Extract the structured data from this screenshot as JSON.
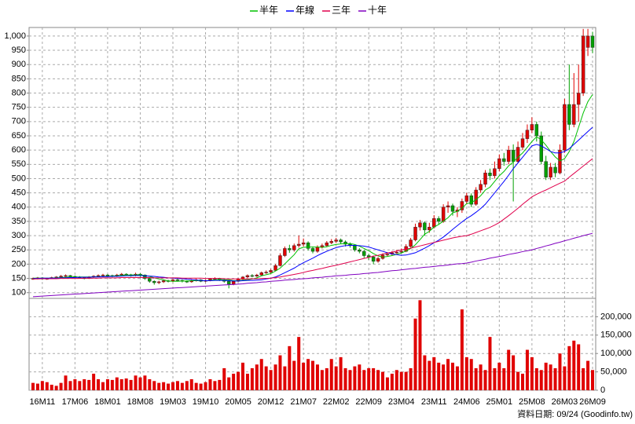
{
  "chart_data": [
    {
      "type": "candlestick",
      "categories": [
        null,
        null,
        "16M11",
        null,
        null,
        null,
        null,
        null,
        null,
        "17M06",
        null,
        null,
        null,
        null,
        null,
        null,
        "18M01",
        null,
        null,
        null,
        null,
        null,
        null,
        "18M08",
        null,
        null,
        null,
        null,
        null,
        null,
        "19M03",
        null,
        null,
        null,
        null,
        null,
        null,
        "19M10",
        null,
        null,
        null,
        null,
        null,
        null,
        "20M05",
        null,
        null,
        null,
        null,
        null,
        null,
        "20M12",
        null,
        null,
        null,
        null,
        null,
        null,
        "21M07",
        null,
        null,
        null,
        null,
        null,
        null,
        "22M02",
        null,
        null,
        null,
        null,
        null,
        null,
        "22M09",
        null,
        null,
        null,
        null,
        null,
        null,
        "23M04",
        null,
        null,
        null,
        null,
        null,
        null,
        "23M11",
        null,
        null,
        null,
        null,
        null,
        null,
        "24M06",
        null,
        null,
        null,
        null,
        null,
        null,
        "25M01",
        null,
        null,
        null,
        null,
        null,
        null,
        "25M08",
        null,
        null,
        null,
        null,
        null,
        null,
        "26M03",
        null,
        null,
        null,
        null,
        null,
        "26M09"
      ],
      "open": [
        148,
        150,
        152,
        148,
        150,
        153,
        155,
        158,
        160,
        157,
        155,
        152,
        150,
        155,
        158,
        160,
        162,
        160,
        158,
        162,
        165,
        163,
        160,
        165,
        162,
        150,
        140,
        135,
        138,
        142,
        140,
        145,
        143,
        140,
        138,
        142,
        145,
        140,
        143,
        148,
        150,
        145,
        140,
        130,
        140,
        148,
        155,
        160,
        158,
        162,
        170,
        172,
        178,
        195,
        230,
        255,
        250,
        265,
        270,
        275,
        255,
        245,
        260,
        265,
        275,
        280,
        285,
        278,
        270,
        265,
        250,
        245,
        230,
        225,
        210,
        220,
        232,
        235,
        240,
        242,
        245,
        262,
        285,
        330,
        345,
        320,
        330,
        360,
        350,
        400,
        405,
        385,
        390,
        420,
        440,
        410,
        460,
        480,
        520,
        510,
        535,
        570,
        560,
        600,
        560,
        610,
        640,
        670,
        690,
        650,
        560,
        505,
        540,
        520,
        600,
        760,
        690,
        760,
        800,
        960,
        1000
      ],
      "high": [
        153,
        155,
        154,
        152,
        156,
        158,
        162,
        164,
        162,
        160,
        158,
        155,
        158,
        161,
        164,
        166,
        165,
        163,
        166,
        169,
        168,
        166,
        170,
        168,
        164,
        152,
        143,
        142,
        146,
        145,
        148,
        149,
        146,
        143,
        145,
        149,
        147,
        146,
        151,
        154,
        152,
        148,
        143,
        143,
        151,
        158,
        164,
        165,
        166,
        174,
        178,
        183,
        200,
        238,
        262,
        268,
        272,
        300,
        290,
        280,
        262,
        266,
        272,
        281,
        288,
        292,
        290,
        283,
        276,
        270,
        256,
        250,
        236,
        230,
        225,
        238,
        242,
        246,
        250,
        255,
        270,
        292,
        342,
        355,
        350,
        345,
        372,
        368,
        410,
        420,
        412,
        400,
        430,
        450,
        448,
        470,
        495,
        530,
        535,
        560,
        585,
        590,
        615,
        620,
        630,
        660,
        690,
        715,
        700,
        665,
        580,
        555,
        555,
        620,
        780,
        900,
        870,
        900,
        1025,
        1025,
        1015
      ],
      "low": [
        145,
        147,
        145,
        145,
        148,
        150,
        153,
        155,
        154,
        152,
        149,
        147,
        148,
        152,
        155,
        157,
        156,
        154,
        155,
        159,
        159,
        156,
        157,
        155,
        145,
        135,
        128,
        130,
        134,
        136,
        137,
        139,
        136,
        134,
        135,
        139,
        137,
        137,
        140,
        145,
        141,
        135,
        115,
        126,
        137,
        145,
        151,
        154,
        155,
        160,
        166,
        168,
        175,
        192,
        225,
        240,
        244,
        258,
        262,
        248,
        238,
        240,
        255,
        260,
        270,
        274,
        270,
        262,
        258,
        244,
        238,
        222,
        215,
        200,
        205,
        216,
        228,
        230,
        236,
        238,
        242,
        258,
        280,
        318,
        300,
        310,
        325,
        340,
        345,
        380,
        370,
        365,
        380,
        410,
        400,
        405,
        450,
        470,
        495,
        500,
        525,
        545,
        550,
        420,
        555,
        600,
        625,
        660,
        630,
        550,
        495,
        495,
        505,
        515,
        590,
        670,
        680,
        700,
        790,
        930,
        940
      ],
      "close": [
        150,
        152,
        148,
        150,
        153,
        155,
        158,
        160,
        157,
        155,
        152,
        150,
        155,
        158,
        160,
        162,
        160,
        158,
        162,
        165,
        163,
        160,
        165,
        162,
        150,
        140,
        135,
        138,
        142,
        140,
        145,
        143,
        140,
        138,
        142,
        145,
        140,
        143,
        148,
        150,
        145,
        140,
        130,
        140,
        148,
        155,
        160,
        158,
        162,
        170,
        172,
        178,
        195,
        230,
        255,
        250,
        265,
        270,
        275,
        255,
        245,
        260,
        265,
        275,
        280,
        285,
        278,
        270,
        265,
        250,
        245,
        230,
        225,
        210,
        220,
        232,
        235,
        240,
        242,
        245,
        262,
        285,
        330,
        345,
        320,
        330,
        360,
        350,
        400,
        405,
        385,
        390,
        420,
        440,
        410,
        460,
        480,
        520,
        510,
        535,
        570,
        560,
        600,
        560,
        610,
        640,
        670,
        690,
        650,
        560,
        505,
        540,
        520,
        600,
        760,
        690,
        760,
        800,
        1000,
        1000,
        960
      ],
      "up_color": "#e00000",
      "down_color": "#00a000",
      "series": [
        {
          "name": "半年",
          "color": "#00c000",
          "values": [
            151,
            151,
            151,
            151,
            151,
            152,
            153,
            154,
            155,
            155,
            155,
            155,
            155,
            155,
            156,
            156,
            157,
            158,
            159,
            161,
            162,
            162,
            162,
            163,
            160,
            157,
            152,
            148,
            145,
            141,
            140,
            140,
            141,
            141,
            142,
            142,
            142,
            142,
            143,
            145,
            146,
            145,
            145,
            142,
            142,
            144,
            145,
            148,
            152,
            159,
            163,
            167,
            176,
            186,
            201,
            217,
            233,
            254,
            259,
            260,
            260,
            260,
            259,
            261,
            266,
            269,
            271,
            272,
            272,
            269,
            263,
            255,
            247,
            237,
            229,
            225,
            227,
            230,
            234,
            239,
            246,
            255,
            268,
            286,
            305,
            315,
            330,
            339,
            351,
            363,
            380,
            385,
            397,
            412,
            416,
            426,
            440,
            460,
            470,
            490,
            510,
            525,
            545,
            558,
            575,
            590,
            610,
            630,
            647,
            636,
            617,
            595,
            576,
            562,
            570,
            595,
            630,
            680,
            730,
            770,
            795
          ]
        },
        {
          "name": "年線",
          "color": "#0000ff",
          "values": [
            150,
            150,
            151,
            151,
            151,
            151,
            152,
            152,
            153,
            153,
            154,
            154,
            154,
            155,
            155,
            156,
            156,
            157,
            157,
            158,
            159,
            159,
            160,
            160,
            159,
            158,
            157,
            155,
            154,
            152,
            151,
            150,
            149,
            147,
            146,
            144,
            143,
            142,
            142,
            143,
            143,
            143,
            142,
            141,
            141,
            142,
            143,
            143,
            144,
            145,
            148,
            151,
            155,
            162,
            170,
            178,
            186,
            196,
            205,
            213,
            221,
            230,
            238,
            245,
            252,
            258,
            262,
            265,
            266,
            266,
            265,
            263,
            260,
            255,
            250,
            245,
            240,
            236,
            233,
            231,
            232,
            236,
            240,
            248,
            256,
            265,
            275,
            284,
            295,
            308,
            322,
            335,
            348,
            360,
            370,
            382,
            395,
            410,
            430,
            450,
            470,
            490,
            512,
            535,
            555,
            575,
            595,
            615,
            620,
            615,
            605,
            595,
            590,
            590,
            595,
            605,
            620,
            635,
            650,
            665,
            680
          ]
        },
        {
          "name": "三年",
          "color": "#e0004c",
          "values": [
            148,
            148,
            149,
            149,
            149,
            149,
            150,
            150,
            150,
            150,
            150,
            151,
            151,
            151,
            151,
            152,
            152,
            152,
            152,
            153,
            153,
            153,
            153,
            153,
            153,
            153,
            152,
            152,
            152,
            152,
            152,
            152,
            151,
            151,
            151,
            151,
            151,
            150,
            150,
            150,
            150,
            149,
            148,
            148,
            148,
            148,
            148,
            149,
            149,
            150,
            150,
            151,
            153,
            155,
            158,
            161,
            164,
            167,
            171,
            175,
            178,
            182,
            185,
            189,
            193,
            196,
            200,
            204,
            208,
            212,
            216,
            220,
            224,
            228,
            231,
            235,
            239,
            242,
            246,
            250,
            253,
            256,
            260,
            264,
            268,
            272,
            276,
            280,
            284,
            288,
            292,
            295,
            298,
            300,
            305,
            311,
            317,
            323,
            329,
            337,
            346,
            358,
            370,
            383,
            396,
            410,
            423,
            436,
            445,
            453,
            460,
            468,
            476,
            484,
            491,
            505,
            518,
            531,
            544,
            557,
            570
          ]
        },
        {
          "name": "十年",
          "color": "#8000c0",
          "values": [
            86,
            87,
            88,
            89,
            90,
            91,
            92,
            93,
            94,
            95,
            96,
            97,
            98,
            99,
            100,
            101,
            102,
            103,
            104,
            105,
            106,
            107,
            108,
            109,
            110,
            111,
            112,
            113,
            114,
            115,
            116,
            117,
            118,
            119,
            120,
            121,
            122,
            123,
            124,
            125,
            126,
            127,
            128,
            129,
            130,
            131,
            133,
            134,
            135,
            137,
            138,
            140,
            141,
            142,
            144,
            145,
            146,
            148,
            149,
            150,
            152,
            153,
            154,
            156,
            157,
            159,
            160,
            161,
            163,
            164,
            165,
            167,
            168,
            170,
            171,
            173,
            175,
            177,
            178,
            180,
            182,
            184,
            185,
            187,
            189,
            190,
            192,
            194,
            195,
            197,
            199,
            201,
            202,
            204,
            207,
            211,
            214,
            217,
            221,
            224,
            227,
            230,
            234,
            237,
            240,
            244,
            247,
            250,
            255,
            259,
            264,
            268,
            273,
            277,
            282,
            286,
            291,
            295,
            300,
            304,
            308
          ]
        }
      ],
      "ylim": [
        80,
        1030
      ],
      "yticks": [
        100,
        150,
        200,
        250,
        300,
        350,
        400,
        450,
        500,
        550,
        600,
        650,
        700,
        750,
        800,
        850,
        900,
        950,
        {
          "value": 1000,
          "label": "1,000"
        }
      ],
      "grid": true,
      "legend": "top"
    },
    {
      "type": "bar",
      "values": [
        20000,
        18000,
        25000,
        22000,
        15000,
        12000,
        20000,
        40000,
        25000,
        30000,
        25000,
        30000,
        28000,
        45000,
        30000,
        22000,
        30000,
        28000,
        35000,
        30000,
        32000,
        28000,
        40000,
        35000,
        40000,
        30000,
        25000,
        20000,
        22000,
        18000,
        22000,
        25000,
        20000,
        25000,
        30000,
        20000,
        18000,
        22000,
        30000,
        25000,
        28000,
        60000,
        35000,
        45000,
        50000,
        75000,
        45000,
        60000,
        70000,
        85000,
        65000,
        55000,
        70000,
        95000,
        65000,
        120000,
        80000,
        145000,
        75000,
        85000,
        80000,
        70000,
        55000,
        60000,
        85000,
        65000,
        90000,
        60000,
        55000,
        65000,
        70000,
        55000,
        60000,
        60000,
        55000,
        50000,
        35000,
        45000,
        55000,
        50000,
        50000,
        60000,
        195000,
        245000,
        95000,
        80000,
        90000,
        75000,
        70000,
        85000,
        75000,
        65000,
        220000,
        90000,
        85000,
        60000,
        70000,
        55000,
        145000,
        60000,
        75000,
        60000,
        110000,
        95000,
        50000,
        45000,
        110000,
        90000,
        60000,
        55000,
        75000,
        70000,
        60000,
        100000,
        65000,
        120000,
        135000,
        125000,
        60000,
        80000,
        55000
      ],
      "color": "#e00000",
      "ylim": [
        0,
        250000
      ],
      "yticks": [
        0,
        {
          "value": 50000,
          "label": "50,000"
        },
        {
          "value": 100000,
          "label": "100,000"
        },
        {
          "value": 150000,
          "label": "150,000"
        },
        {
          "value": 200000,
          "label": "200,000"
        }
      ],
      "grid": true,
      "axis_side": "right"
    }
  ],
  "footnote": "資料日期: 09/24 (Goodinfo.tw)"
}
